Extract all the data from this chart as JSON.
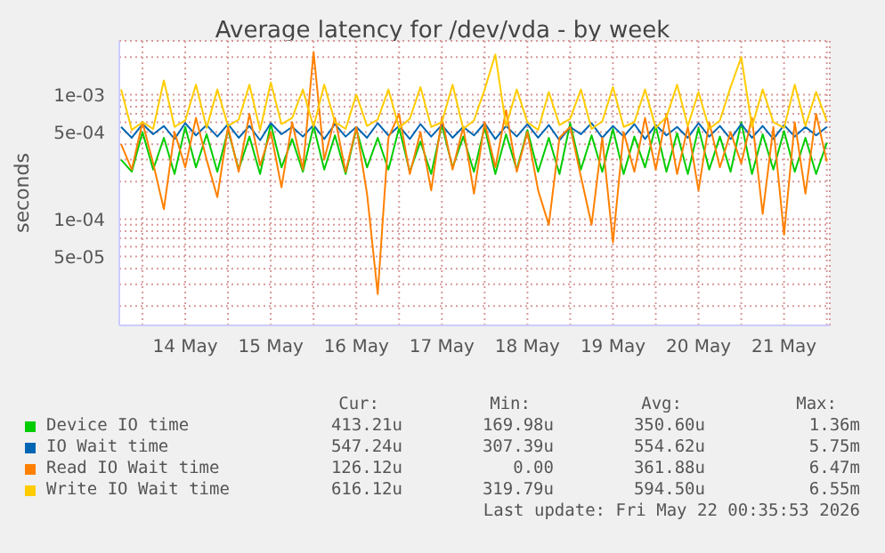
{
  "chart_data": {
    "type": "line",
    "title": "Average latency for /dev/vda - by week",
    "ylabel": "seconds",
    "log": true,
    "grid": true,
    "legend": "bottom",
    "marker": "none",
    "line_style": "solid",
    "x": [
      "2026-05-13T18:00",
      "2026-05-13T21:00",
      "2026-05-14T00:00",
      "2026-05-14T03:00",
      "2026-05-14T06:00",
      "2026-05-14T09:00",
      "2026-05-14T12:00",
      "2026-05-14T15:00",
      "2026-05-14T18:00",
      "2026-05-14T21:00",
      "2026-05-15T00:00",
      "2026-05-15T03:00",
      "2026-05-15T06:00",
      "2026-05-15T09:00",
      "2026-05-15T12:00",
      "2026-05-15T15:00",
      "2026-05-15T18:00",
      "2026-05-15T21:00",
      "2026-05-16T00:00",
      "2026-05-16T03:00",
      "2026-05-16T06:00",
      "2026-05-16T09:00",
      "2026-05-16T12:00",
      "2026-05-16T15:00",
      "2026-05-16T18:00",
      "2026-05-16T21:00",
      "2026-05-17T00:00",
      "2026-05-17T03:00",
      "2026-05-17T06:00",
      "2026-05-17T09:00",
      "2026-05-17T12:00",
      "2026-05-17T15:00",
      "2026-05-17T18:00",
      "2026-05-17T21:00",
      "2026-05-18T00:00",
      "2026-05-18T03:00",
      "2026-05-18T06:00",
      "2026-05-18T09:00",
      "2026-05-18T12:00",
      "2026-05-18T15:00",
      "2026-05-18T18:00",
      "2026-05-18T21:00",
      "2026-05-19T00:00",
      "2026-05-19T03:00",
      "2026-05-19T06:00",
      "2026-05-19T09:00",
      "2026-05-19T12:00",
      "2026-05-19T15:00",
      "2026-05-19T18:00",
      "2026-05-19T21:00",
      "2026-05-20T00:00",
      "2026-05-20T03:00",
      "2026-05-20T06:00",
      "2026-05-20T09:00",
      "2026-05-20T12:00",
      "2026-05-20T15:00",
      "2026-05-20T18:00",
      "2026-05-20T21:00",
      "2026-05-21T00:00",
      "2026-05-21T03:00",
      "2026-05-21T06:00",
      "2026-05-21T09:00",
      "2026-05-21T12:00",
      "2026-05-21T15:00",
      "2026-05-21T18:00",
      "2026-05-21T21:00",
      "2026-05-22T00:00"
    ],
    "xlim": [
      "2026-05-13T17:30",
      "2026-05-22T00:50"
    ],
    "xticks": [
      {
        "value": "2026-05-14T00:00",
        "label": null
      },
      {
        "value": "2026-05-14T12:00",
        "label": "14 May"
      },
      {
        "value": "2026-05-15T00:00",
        "label": null
      },
      {
        "value": "2026-05-15T12:00",
        "label": "15 May"
      },
      {
        "value": "2026-05-16T00:00",
        "label": null
      },
      {
        "value": "2026-05-16T12:00",
        "label": "16 May"
      },
      {
        "value": "2026-05-17T00:00",
        "label": null
      },
      {
        "value": "2026-05-17T12:00",
        "label": "17 May"
      },
      {
        "value": "2026-05-18T00:00",
        "label": null
      },
      {
        "value": "2026-05-18T12:00",
        "label": "18 May"
      },
      {
        "value": "2026-05-19T00:00",
        "label": null
      },
      {
        "value": "2026-05-19T12:00",
        "label": "19 May"
      },
      {
        "value": "2026-05-20T00:00",
        "label": null
      },
      {
        "value": "2026-05-20T12:00",
        "label": "20 May"
      },
      {
        "value": "2026-05-21T00:00",
        "label": null
      },
      {
        "value": "2026-05-21T12:00",
        "label": "21 May"
      },
      {
        "value": "2026-05-22T00:00",
        "label": null
      }
    ],
    "ylim": [
      1.4e-05,
      0.0027
    ],
    "yticks": [
      {
        "value": 2e-05,
        "label": null
      },
      {
        "value": 3e-05,
        "label": null
      },
      {
        "value": 4e-05,
        "label": null
      },
      {
        "value": 5e-05,
        "label": "5e-05"
      },
      {
        "value": 6e-05,
        "label": null
      },
      {
        "value": 7e-05,
        "label": null
      },
      {
        "value": 8e-05,
        "label": null
      },
      {
        "value": 9e-05,
        "label": null
      },
      {
        "value": 0.0001,
        "label": "1e-04"
      },
      {
        "value": 0.0002,
        "label": null
      },
      {
        "value": 0.0003,
        "label": null
      },
      {
        "value": 0.0004,
        "label": null
      },
      {
        "value": 0.0005,
        "label": "5e-04"
      },
      {
        "value": 0.0006,
        "label": null
      },
      {
        "value": 0.0007,
        "label": null
      },
      {
        "value": 0.0008,
        "label": null
      },
      {
        "value": 0.0009,
        "label": null
      },
      {
        "value": 0.001,
        "label": "1e-03"
      },
      {
        "value": 0.002,
        "label": null
      }
    ],
    "series": [
      {
        "name": "Device IO time",
        "color": "#00cc00",
        "values": [
          0.0003,
          0.00024,
          0.0005,
          0.00025,
          0.00045,
          0.00023,
          0.00055,
          0.00026,
          0.00048,
          0.00024,
          0.00052,
          0.00025,
          0.00046,
          0.00023,
          0.00058,
          0.00026,
          0.00044,
          0.00024,
          0.00056,
          0.00025,
          0.00047,
          0.00023,
          0.00053,
          0.00026,
          0.00045,
          0.00025,
          0.00054,
          0.00024,
          0.00042,
          0.00023,
          0.00057,
          0.00026,
          0.00046,
          0.00024,
          0.00055,
          0.00023,
          0.00048,
          0.00025,
          0.00052,
          0.00024,
          0.00045,
          0.00023,
          0.00059,
          0.00025,
          0.00047,
          0.00024,
          0.00053,
          0.00023,
          0.00046,
          0.00026,
          0.00056,
          0.00024,
          0.00049,
          0.00023,
          0.00054,
          0.00025,
          0.00046,
          0.00024,
          0.0006,
          0.00023,
          0.00048,
          0.00025,
          0.00051,
          0.00024,
          0.00045,
          0.00023,
          0.00041
        ]
      },
      {
        "name": "IO Wait time",
        "color": "#0066b3",
        "values": [
          0.00055,
          0.00045,
          0.00058,
          0.00048,
          0.00056,
          0.00044,
          0.00059,
          0.00047,
          0.00057,
          0.00046,
          0.00058,
          0.00045,
          0.00056,
          0.00043,
          0.00059,
          0.00048,
          0.00055,
          0.00046,
          0.00057,
          0.00044,
          0.00058,
          0.00046,
          0.00055,
          0.00045,
          0.00059,
          0.00047,
          0.00056,
          0.00044,
          0.00058,
          0.00046,
          0.00057,
          0.00045,
          0.00055,
          0.00047,
          0.00059,
          0.00044,
          0.00056,
          0.00046,
          0.00058,
          0.00045,
          0.00057,
          0.00043,
          0.00055,
          0.00048,
          0.00059,
          0.00045,
          0.00056,
          0.00046,
          0.00058,
          0.00044,
          0.00057,
          0.00047,
          0.00055,
          0.00045,
          0.00059,
          0.00046,
          0.00056,
          0.00044,
          0.00058,
          0.00045,
          0.00056,
          0.00044,
          0.00057,
          0.00046,
          0.00055,
          0.00047,
          0.00055
        ]
      },
      {
        "name": "Read IO Wait time",
        "color": "#ff8000",
        "values": [
          0.0004,
          0.00025,
          0.0006,
          0.00028,
          0.00012,
          0.0005,
          0.00026,
          0.00065,
          0.0003,
          0.00015,
          0.00055,
          0.00024,
          0.0007,
          0.00027,
          0.0005,
          0.00018,
          0.0006,
          0.00025,
          0.0022,
          0.0003,
          0.00065,
          0.00024,
          0.00055,
          0.00016,
          2.5e-05,
          0.00045,
          0.0007,
          0.00023,
          0.0005,
          0.00017,
          0.00065,
          0.00025,
          0.00055,
          0.00016,
          0.0006,
          0.00026,
          0.00075,
          0.00024,
          0.0005,
          0.00017,
          9e-05,
          0.00045,
          0.00055,
          0.00022,
          9e-05,
          0.00045,
          6.5e-05,
          0.0005,
          0.00024,
          0.00065,
          0.00025,
          0.0007,
          0.00023,
          0.00055,
          0.00017,
          0.0006,
          0.00026,
          0.0005,
          0.00028,
          0.00065,
          0.00011,
          0.00055,
          7.5e-05,
          0.0006,
          0.00016,
          0.0007,
          0.00029
        ]
      },
      {
        "name": "Write IO Wait time",
        "color": "#ffcc00",
        "values": [
          0.0011,
          0.00052,
          0.0006,
          0.00053,
          0.0013,
          0.00055,
          0.00062,
          0.0012,
          0.00054,
          0.0011,
          0.00056,
          0.00063,
          0.0012,
          0.00052,
          0.00125,
          0.00058,
          0.00065,
          0.0011,
          0.00055,
          0.0012,
          0.0006,
          0.00053,
          0.001,
          0.00056,
          0.00063,
          0.0011,
          0.00054,
          0.00064,
          0.00115,
          0.00055,
          0.0006,
          0.0012,
          0.00053,
          0.00062,
          0.0011,
          0.0021,
          0.00056,
          0.0011,
          0.0006,
          0.00052,
          0.00105,
          0.00057,
          0.00064,
          0.0011,
          0.00053,
          0.00061,
          0.00115,
          0.00055,
          0.0006,
          0.0011,
          0.00054,
          0.00066,
          0.0012,
          0.00056,
          0.00105,
          0.00053,
          0.00062,
          0.00115,
          0.002,
          0.00055,
          0.0011,
          0.0006,
          0.00054,
          0.0012,
          0.00056,
          0.00105,
          0.00061
        ]
      }
    ],
    "annotations": [
      "Cur:",
      "Min:",
      "Avg:",
      "Max:",
      "413.21u",
      "169.98u",
      "350.60u",
      "1.36m",
      "547.24u",
      "307.39u",
      "554.62u",
      "5.75m",
      "126.12u",
      "0.00",
      "361.88u",
      "6.47m",
      "616.12u",
      "319.79u",
      "594.50u",
      "6.55m",
      "Last update: Fri May 22 00:35:53 2026"
    ]
  }
}
